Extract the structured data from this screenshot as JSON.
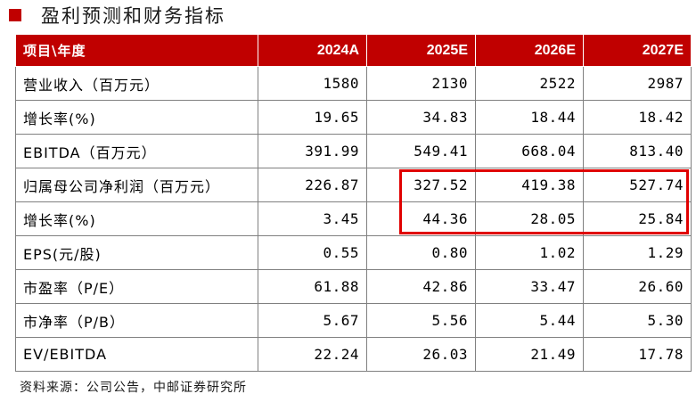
{
  "title": "盈利预测和财务指标",
  "header": [
    "项目\\年度",
    "2024A",
    "2025E",
    "2026E",
    "2027E"
  ],
  "rows": [
    {
      "label": "营业收入（百万元）",
      "values": [
        "1580",
        "2130",
        "2522",
        "2987"
      ]
    },
    {
      "label": "增长率(%)",
      "values": [
        "19.65",
        "34.83",
        "18.44",
        "18.42"
      ]
    },
    {
      "label": "EBITDA（百万元）",
      "values": [
        "391.99",
        "549.41",
        "668.04",
        "813.40"
      ]
    },
    {
      "label": "归属母公司净利润（百万元）",
      "values": [
        "226.87",
        "327.52",
        "419.38",
        "527.74"
      ]
    },
    {
      "label": "增长率(%)",
      "values": [
        "3.45",
        "44.36",
        "28.05",
        "25.84"
      ]
    },
    {
      "label": "EPS(元/股)",
      "values": [
        "0.55",
        "0.80",
        "1.02",
        "1.29"
      ]
    },
    {
      "label": "市盈率（P/E）",
      "values": [
        "61.88",
        "42.86",
        "33.47",
        "26.60"
      ]
    },
    {
      "label": "市净率（P/B）",
      "values": [
        "5.67",
        "5.56",
        "5.44",
        "5.30"
      ]
    },
    {
      "label": "EV/EBITDA",
      "values": [
        "22.24",
        "26.03",
        "21.49",
        "17.78"
      ]
    }
  ],
  "source": "资料来源：公司公告，中邮证券研究所",
  "colors": {
    "header_bg": "#c00000",
    "accent": "#c00000",
    "highlight": "#e00000",
    "border": "#808080"
  }
}
